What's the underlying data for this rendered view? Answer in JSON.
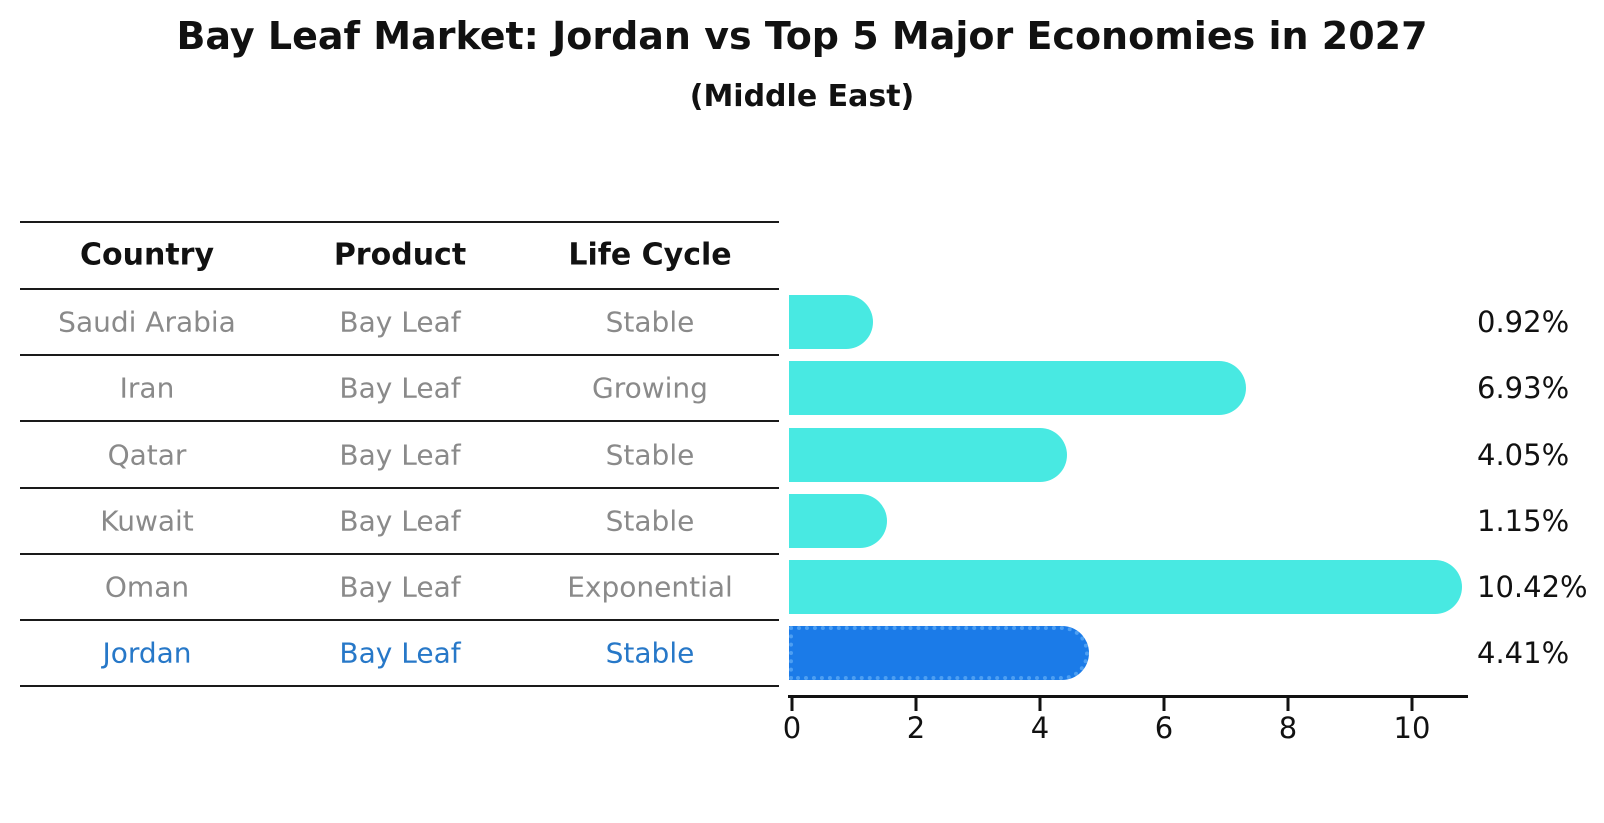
{
  "title": "Bay Leaf Market: Jordan vs Top 5 Major Economies in 2027",
  "subtitle": "(Middle East)",
  "table": {
    "headers": [
      "Country",
      "Product",
      "Life Cycle"
    ],
    "rows": [
      {
        "country": "Saudi Arabia",
        "product": "Bay Leaf",
        "life_cycle": "Stable",
        "highlight": false
      },
      {
        "country": "Iran",
        "product": "Bay Leaf",
        "life_cycle": "Growing",
        "highlight": false
      },
      {
        "country": "Qatar",
        "product": "Bay Leaf",
        "life_cycle": "Stable",
        "highlight": false
      },
      {
        "country": "Kuwait",
        "product": "Bay Leaf",
        "life_cycle": "Stable",
        "highlight": false
      },
      {
        "country": "Oman",
        "product": "Bay Leaf",
        "life_cycle": "Exponential",
        "highlight": false
      },
      {
        "country": "Jordan",
        "product": "Bay Leaf",
        "life_cycle": "Stable",
        "highlight": true
      }
    ]
  },
  "chart_data": {
    "type": "bar",
    "orientation": "horizontal",
    "title": "Bay Leaf Market: Jordan vs Top 5 Major Economies in 2027",
    "subtitle": "(Middle East)",
    "categories": [
      "Saudi Arabia",
      "Iran",
      "Qatar",
      "Kuwait",
      "Oman",
      "Jordan"
    ],
    "values": [
      0.92,
      6.93,
      4.05,
      1.15,
      10.42,
      4.41
    ],
    "value_labels": [
      "0.92%",
      "6.93%",
      "4.05%",
      "1.15%",
      "10.42%",
      "4.41%"
    ],
    "unit": "%",
    "xlabel": "",
    "ylabel": "",
    "xlim": [
      0,
      10.9
    ],
    "xticks": [
      0,
      2,
      4,
      6,
      8,
      10
    ],
    "grid": false,
    "legend": "none",
    "bar_color": "#48e9e2",
    "highlight_bar_color": "#1b7be8",
    "highlight_edge_color": "#4d9ff2",
    "highlight_index": 5,
    "highlight_text_color": "#2778c8"
  }
}
